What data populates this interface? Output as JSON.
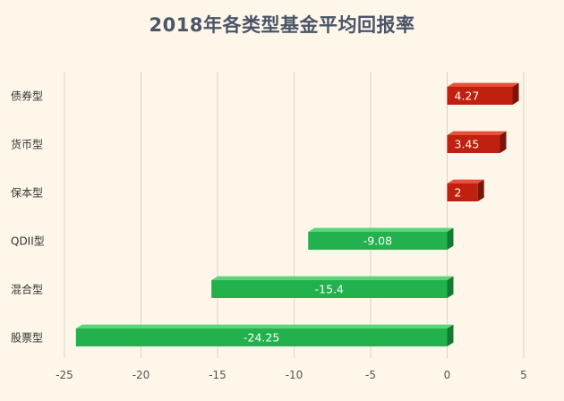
{
  "chart_data": {
    "type": "bar",
    "orientation": "horizontal",
    "title": "2018年各类型基金平均回报率",
    "categories": [
      "债券型",
      "货币型",
      "保本型",
      "QDII型",
      "混合型",
      "股票型"
    ],
    "values": [
      4.27,
      3.45,
      2,
      -9.08,
      -15.4,
      -24.25
    ],
    "value_labels": [
      "4.27",
      "3.45",
      "2",
      "-9.08",
      "-15.4",
      "-24.25"
    ],
    "xlim": [
      -25,
      5
    ],
    "xticks": [
      "-25",
      "-20",
      "-15",
      "-10",
      "-5",
      "0",
      "5"
    ],
    "grid": "vertical",
    "colors": {
      "positive": "#c0200f",
      "positive_top": "#e8503a",
      "positive_side": "#7d1409",
      "negative": "#22b14c",
      "negative_top": "#5cd47a",
      "negative_side": "#157a32",
      "grid": "#d9d2c6"
    }
  }
}
